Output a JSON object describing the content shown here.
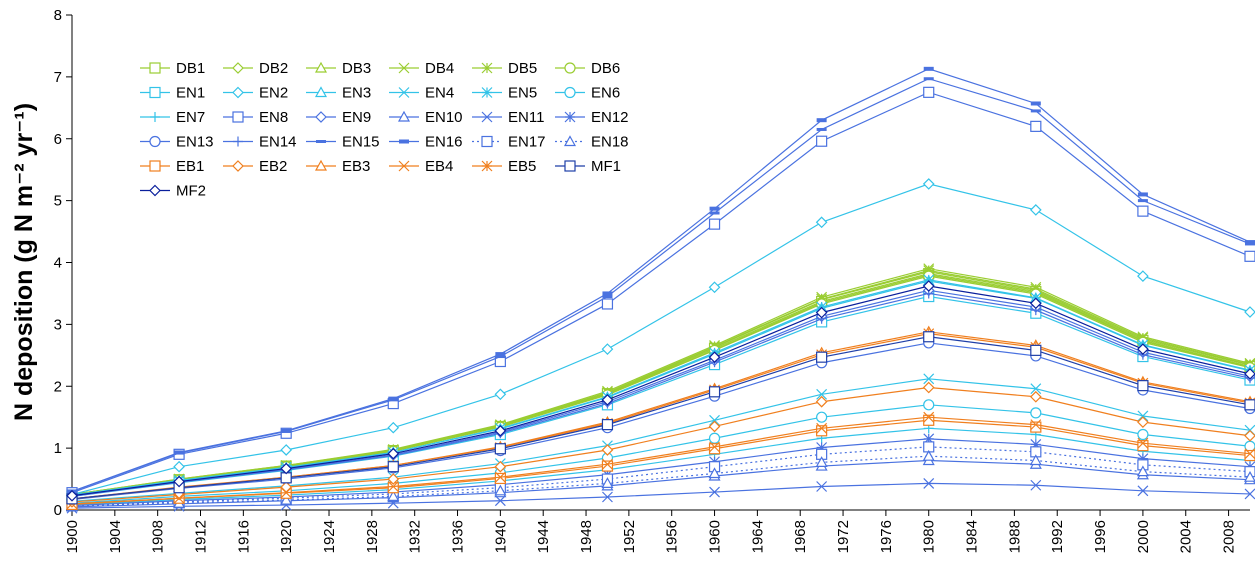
{
  "chart_data": {
    "type": "line",
    "ylabel": "N deposition (g N m⁻² yr⁻¹)",
    "x": [
      1900,
      1910,
      1920,
      1930,
      1940,
      1950,
      1960,
      1970,
      1980,
      1990,
      2000,
      2010
    ],
    "xlim": [
      1900,
      2010
    ],
    "xticks": [
      1900,
      1904,
      1908,
      1912,
      1916,
      1920,
      1924,
      1928,
      1932,
      1936,
      1940,
      1944,
      1948,
      1952,
      1956,
      1960,
      1964,
      1968,
      1972,
      1976,
      1980,
      1984,
      1988,
      1992,
      1996,
      2000,
      2004,
      2008
    ],
    "ylim": [
      0,
      8
    ],
    "yticks": [
      0,
      1,
      2,
      3,
      4,
      5,
      6,
      7,
      8
    ],
    "series": [
      {
        "name": "DB1",
        "color": "#9acd32",
        "marker": "square",
        "values": [
          0.24,
          0.49,
          0.71,
          0.96,
          1.35,
          1.88,
          2.61,
          3.37,
          3.82,
          3.53,
          2.74,
          2.32
        ]
      },
      {
        "name": "DB2",
        "color": "#9acd32",
        "marker": "diamond",
        "values": [
          0.24,
          0.49,
          0.7,
          0.95,
          1.35,
          1.87,
          2.59,
          3.35,
          3.8,
          3.51,
          2.73,
          2.31
        ]
      },
      {
        "name": "DB3",
        "color": "#9acd32",
        "marker": "triangle",
        "values": [
          0.25,
          0.49,
          0.71,
          0.97,
          1.36,
          1.89,
          2.63,
          3.4,
          3.85,
          3.55,
          2.76,
          2.34
        ]
      },
      {
        "name": "DB4",
        "color": "#9acd32",
        "marker": "x",
        "values": [
          0.25,
          0.5,
          0.72,
          0.98,
          1.38,
          1.92,
          2.66,
          3.44,
          3.9,
          3.6,
          2.8,
          2.37
        ]
      },
      {
        "name": "DB5",
        "color": "#9acd32",
        "marker": "star",
        "values": [
          0.25,
          0.5,
          0.72,
          0.97,
          1.37,
          1.9,
          2.64,
          3.41,
          3.87,
          3.57,
          2.78,
          2.35
        ]
      },
      {
        "name": "DB6",
        "color": "#9acd32",
        "marker": "circle",
        "values": [
          0.24,
          0.48,
          0.7,
          0.95,
          1.34,
          1.86,
          2.58,
          3.33,
          3.78,
          3.49,
          2.71,
          2.3
        ]
      },
      {
        "name": "EN1",
        "color": "#33c3e8",
        "marker": "square",
        "values": [
          0.22,
          0.44,
          0.64,
          0.87,
          1.22,
          1.7,
          2.35,
          3.04,
          3.45,
          3.18,
          2.48,
          2.1
        ]
      },
      {
        "name": "EN2",
        "color": "#33c3e8",
        "marker": "diamond",
        "values": [
          0.25,
          0.7,
          0.97,
          1.33,
          1.87,
          2.6,
          3.6,
          4.65,
          5.27,
          4.85,
          3.78,
          3.2
        ]
      },
      {
        "name": "EN3",
        "color": "#33c3e8",
        "marker": "triangle",
        "values": [
          0.24,
          0.47,
          0.68,
          0.93,
          1.31,
          1.82,
          2.52,
          3.26,
          3.7,
          3.42,
          2.66,
          2.25
        ]
      },
      {
        "name": "EN4",
        "color": "#33c3e8",
        "marker": "x",
        "values": [
          0.14,
          0.27,
          0.39,
          0.53,
          0.75,
          1.04,
          1.45,
          1.87,
          2.12,
          1.96,
          1.52,
          1.29
        ]
      },
      {
        "name": "EN5",
        "color": "#33c3e8",
        "marker": "star",
        "values": [
          0.24,
          0.48,
          0.69,
          0.93,
          1.32,
          1.83,
          2.54,
          3.28,
          3.72,
          3.43,
          2.67,
          2.26
        ]
      },
      {
        "name": "EN6",
        "color": "#33c3e8",
        "marker": "circle",
        "values": [
          0.11,
          0.22,
          0.31,
          0.43,
          0.6,
          0.84,
          1.16,
          1.5,
          1.7,
          1.57,
          1.22,
          1.03
        ]
      },
      {
        "name": "EN7",
        "color": "#33c3e8",
        "marker": "plus",
        "values": [
          0.08,
          0.17,
          0.24,
          0.33,
          0.47,
          0.65,
          0.9,
          1.16,
          1.32,
          1.22,
          0.95,
          0.8
        ]
      },
      {
        "name": "EN8",
        "color": "#4a72e0",
        "marker": "square",
        "values": [
          0.28,
          0.9,
          1.24,
          1.72,
          2.4,
          3.33,
          4.62,
          5.96,
          6.75,
          6.2,
          4.83,
          4.1
        ]
      },
      {
        "name": "EN9",
        "color": "#4a72e0",
        "marker": "diamond",
        "values": [
          0.23,
          0.45,
          0.66,
          0.89,
          1.26,
          1.75,
          2.42,
          3.13,
          3.55,
          3.28,
          2.55,
          2.16
        ]
      },
      {
        "name": "EN10",
        "color": "#4a72e0",
        "marker": "triangle",
        "values": [
          0.05,
          0.1,
          0.15,
          0.2,
          0.28,
          0.39,
          0.55,
          0.71,
          0.8,
          0.74,
          0.57,
          0.49
        ]
      },
      {
        "name": "EN11",
        "color": "#4a72e0",
        "marker": "x",
        "values": [
          0.03,
          0.06,
          0.08,
          0.11,
          0.15,
          0.21,
          0.29,
          0.38,
          0.43,
          0.4,
          0.31,
          0.26
        ]
      },
      {
        "name": "EN12",
        "color": "#4a72e0",
        "marker": "star",
        "values": [
          0.07,
          0.15,
          0.21,
          0.29,
          0.41,
          0.57,
          0.78,
          1.01,
          1.15,
          1.06,
          0.83,
          0.7
        ]
      },
      {
        "name": "EN13",
        "color": "#4a72e0",
        "marker": "circle",
        "values": [
          0.17,
          0.35,
          0.5,
          0.68,
          0.96,
          1.33,
          1.84,
          2.38,
          2.7,
          2.49,
          1.94,
          1.64
        ]
      },
      {
        "name": "EN14",
        "color": "#4a72e0",
        "marker": "plus",
        "values": [
          0.22,
          0.45,
          0.65,
          0.88,
          1.24,
          1.72,
          2.39,
          3.09,
          3.5,
          3.23,
          2.51,
          2.13
        ]
      },
      {
        "name": "EN15",
        "color": "#4a72e0",
        "marker": "dash",
        "values": [
          0.3,
          0.92,
          1.27,
          1.78,
          2.48,
          3.45,
          4.8,
          6.15,
          6.97,
          6.45,
          5.0,
          4.3
        ]
      },
      {
        "name": "EN16",
        "color": "#4a72e0",
        "marker": "bar",
        "values": [
          0.3,
          0.93,
          1.28,
          1.8,
          2.52,
          3.5,
          4.87,
          6.3,
          7.13,
          6.57,
          5.1,
          4.33
        ]
      },
      {
        "name": "EN17",
        "color": "#4a72e0",
        "marker": "square",
        "dashed": true,
        "values": [
          0.07,
          0.13,
          0.19,
          0.26,
          0.36,
          0.5,
          0.7,
          0.9,
          1.02,
          0.94,
          0.73,
          0.62
        ]
      },
      {
        "name": "EN18",
        "color": "#4a72e0",
        "marker": "triangle",
        "dashed": true,
        "values": [
          0.06,
          0.11,
          0.16,
          0.22,
          0.31,
          0.43,
          0.59,
          0.77,
          0.87,
          0.8,
          0.62,
          0.53
        ]
      },
      {
        "name": "EB1",
        "color": "#f07f1e",
        "marker": "square",
        "values": [
          0.09,
          0.19,
          0.27,
          0.36,
          0.51,
          0.71,
          0.99,
          1.28,
          1.45,
          1.34,
          1.04,
          0.88
        ]
      },
      {
        "name": "EB2",
        "color": "#f07f1e",
        "marker": "diamond",
        "values": [
          0.13,
          0.25,
          0.37,
          0.5,
          0.7,
          0.97,
          1.35,
          1.75,
          1.98,
          1.83,
          1.42,
          1.2
        ]
      },
      {
        "name": "EB3",
        "color": "#f07f1e",
        "marker": "triangle",
        "values": [
          0.18,
          0.37,
          0.53,
          0.72,
          1.02,
          1.42,
          1.96,
          2.54,
          2.88,
          2.66,
          2.07,
          1.75
        ]
      },
      {
        "name": "EB4",
        "color": "#f07f1e",
        "marker": "x",
        "values": [
          0.1,
          0.19,
          0.28,
          0.38,
          0.53,
          0.74,
          1.02,
          1.32,
          1.5,
          1.38,
          1.08,
          0.91
        ]
      },
      {
        "name": "EB5",
        "color": "#f07f1e",
        "marker": "star",
        "values": [
          0.18,
          0.36,
          0.53,
          0.72,
          1.01,
          1.4,
          1.94,
          2.51,
          2.85,
          2.63,
          2.05,
          1.73
        ]
      },
      {
        "name": "MF1",
        "color": "#1f3fa8",
        "marker": "square",
        "values": [
          0.18,
          0.36,
          0.52,
          0.7,
          0.99,
          1.38,
          1.91,
          2.47,
          2.8,
          2.58,
          2.01,
          1.7
        ]
      },
      {
        "name": "MF2",
        "color": "#0a1f9c",
        "marker": "diamond",
        "values": [
          0.23,
          0.46,
          0.67,
          0.91,
          1.28,
          1.78,
          2.47,
          3.19,
          3.62,
          3.34,
          2.6,
          2.2
        ]
      }
    ]
  }
}
